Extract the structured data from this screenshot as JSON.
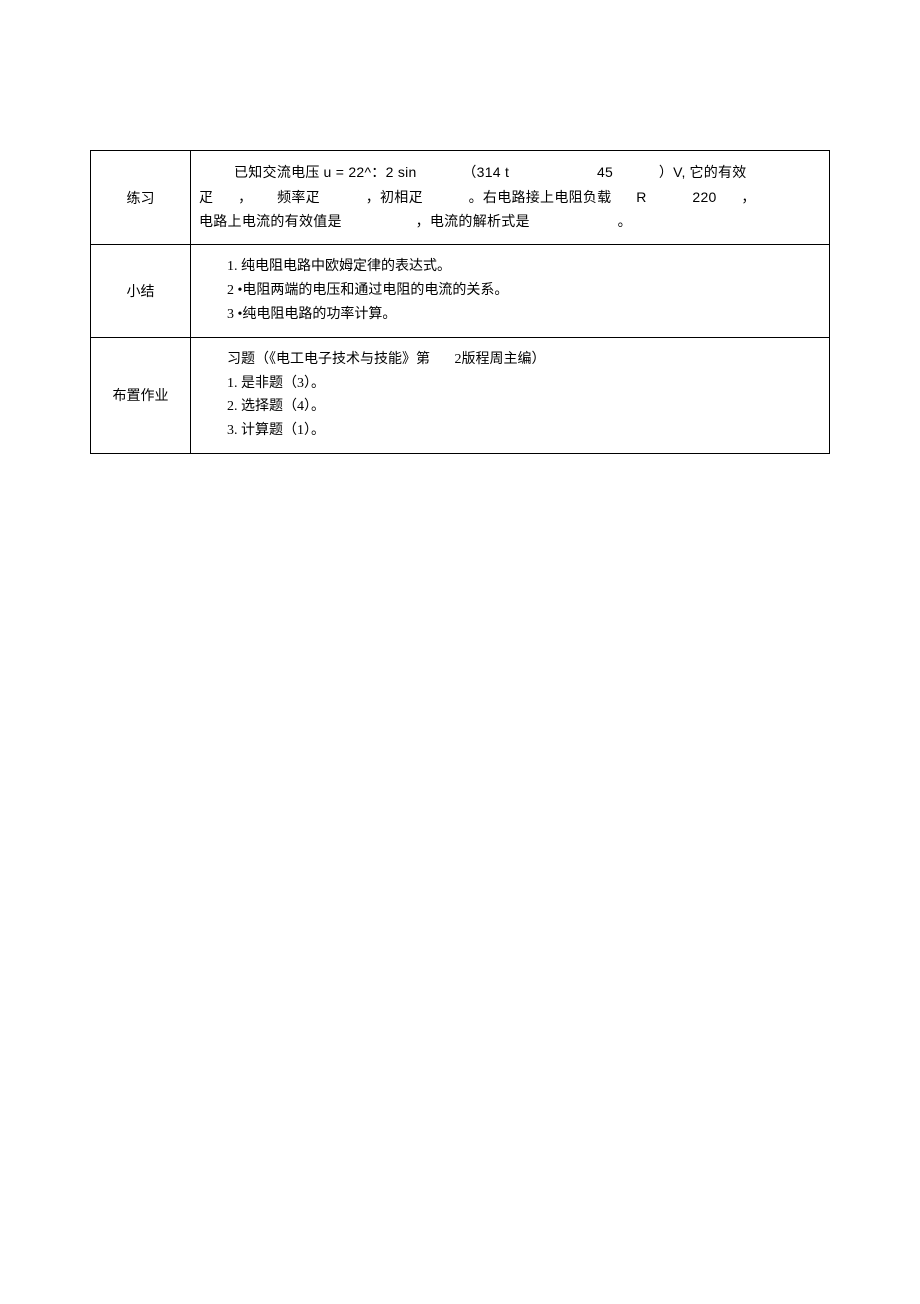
{
  "rows": [
    {
      "label": "练习",
      "c1_p1_a": "已知交流电压",
      "c1_p1_b": "u = 22^：2 sin",
      "c1_p1_c": "（314 t",
      "c1_p1_d": "45",
      "c1_p1_e": "）V,",
      "c1_p1_f": "它的有效",
      "c1_p2_a": "疋",
      "c1_p2_b": "，",
      "c1_p2_c": "频率疋",
      "c1_p2_d": "，初相疋",
      "c1_p2_e": "。右电路接上电阻负载",
      "c1_p2_f": "R",
      "c1_p2_g": "220",
      "c1_p2_h": "，",
      "c1_p3_a": "电路上电流的有效值是",
      "c1_p3_b": "，电流的解析式是",
      "c1_p3_c": "。"
    },
    {
      "label": "小结",
      "item1": "1. 纯电阻电路中欧姆定律的表达式。",
      "item2": "2 •电阻两端的电压和通过电阻的电流的关系。",
      "item3": "3 •纯电阻电路的功率计算。"
    },
    {
      "label": "布置作业",
      "line1a": "习题（《电工电子技术与技能》第",
      "line1b": "2版程周主编）",
      "item1": "1. 是非题（3）。",
      "item2": "2. 选择题（4）。",
      "item3": "3. 计算题（1）。"
    }
  ]
}
